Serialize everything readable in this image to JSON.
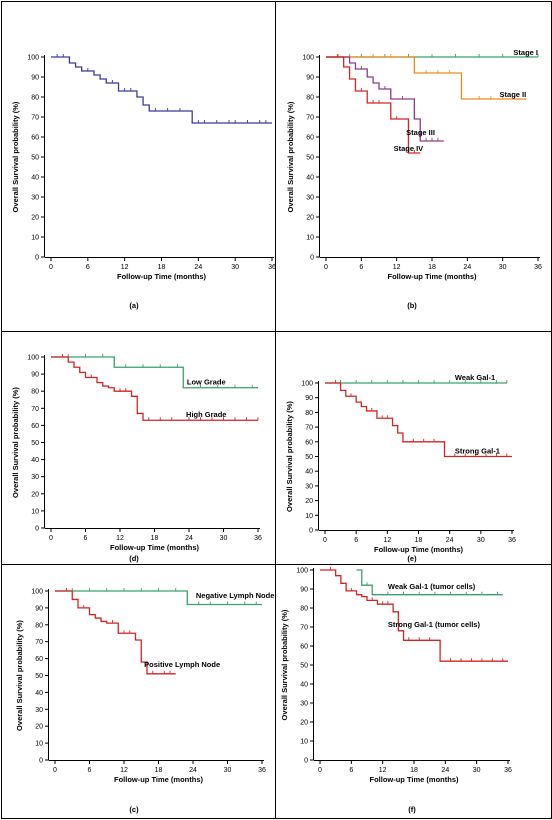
{
  "colors": {
    "blue": "#3a3a9a",
    "green": "#3aa06e",
    "orange": "#ef8a1a",
    "purple": "#8c3c8c",
    "red": "#d42424",
    "axis": "#000000",
    "frame": "#000000"
  },
  "chart_data": [
    {
      "panel": "(a)",
      "type": "line",
      "xlabel": "Follow-up Time (months)",
      "ylabel": "Overall Survival probability (%)",
      "xlim": [
        0,
        36
      ],
      "ylim": [
        0,
        100
      ],
      "xticks": [
        0,
        6,
        12,
        18,
        24,
        30,
        36
      ],
      "yticks": [
        0,
        10,
        20,
        30,
        40,
        50,
        60,
        70,
        80,
        90,
        100
      ],
      "series": [
        {
          "name": "",
          "color": "blue",
          "steps": [
            [
              0,
              100
            ],
            [
              3,
              97
            ],
            [
              4,
              95
            ],
            [
              5,
              93
            ],
            [
              7,
              91
            ],
            [
              8,
              89
            ],
            [
              9,
              87
            ],
            [
              11,
              83
            ],
            [
              14,
              80
            ],
            [
              15,
              76
            ],
            [
              16,
              73
            ],
            [
              23,
              67
            ],
            [
              36,
              67
            ]
          ],
          "censor": [
            1,
            2,
            5,
            6,
            8,
            10,
            12,
            13,
            17,
            19,
            21,
            24,
            25,
            27,
            29,
            30,
            32,
            34,
            35
          ]
        }
      ],
      "labels": []
    },
    {
      "panel": "(b)",
      "type": "line",
      "xlabel": "Follow-up Time (months)",
      "ylabel": "Overall Survival probability (%)",
      "xlim": [
        0,
        36
      ],
      "ylim": [
        0,
        100
      ],
      "xticks": [
        0,
        6,
        12,
        18,
        24,
        30,
        36
      ],
      "yticks": [
        0,
        10,
        20,
        30,
        40,
        50,
        60,
        70,
        80,
        90,
        100
      ],
      "series": [
        {
          "name": "Stage I",
          "color": "green",
          "steps": [
            [
              0,
              100
            ],
            [
              36,
              100
            ]
          ],
          "censor": [
            2,
            4,
            6,
            10,
            14,
            18,
            22,
            26,
            30,
            34,
            36
          ]
        },
        {
          "name": "Stage II",
          "color": "orange",
          "steps": [
            [
              0,
              100
            ],
            [
              15,
              92
            ],
            [
              23,
              79
            ],
            [
              34,
              79
            ]
          ],
          "censor": [
            2,
            4,
            8,
            11,
            17,
            19,
            21,
            26,
            28,
            30,
            32
          ]
        },
        {
          "name": "Stage III",
          "color": "purple",
          "steps": [
            [
              0,
              100
            ],
            [
              4,
              97
            ],
            [
              5,
              94
            ],
            [
              7,
              90
            ],
            [
              8,
              87
            ],
            [
              9,
              84
            ],
            [
              11,
              79
            ],
            [
              15,
              69
            ],
            [
              16,
              58
            ],
            [
              20,
              58
            ]
          ],
          "censor": [
            2,
            6,
            10,
            13,
            17,
            18,
            19
          ]
        },
        {
          "name": "Stage IV",
          "color": "red",
          "steps": [
            [
              0,
              100
            ],
            [
              3,
              95
            ],
            [
              4,
              89
            ],
            [
              5,
              83
            ],
            [
              7,
              77
            ],
            [
              11,
              69
            ],
            [
              14,
              52
            ],
            [
              16,
              52
            ]
          ],
          "censor": [
            2,
            6,
            8,
            9,
            12,
            15
          ]
        }
      ],
      "labels": [
        {
          "series": 0,
          "text": "Stage I",
          "x": 36,
          "y": 101
        },
        {
          "series": 1,
          "text": "Stage II",
          "x": 34,
          "y": 80
        },
        {
          "series": 2,
          "text": "Stage III",
          "x": 18.5,
          "y": 61
        },
        {
          "series": 3,
          "text": "Stage IV",
          "x": 16.5,
          "y": 53
        }
      ]
    },
    {
      "panel": "(d)",
      "type": "line",
      "xlabel": "Follow-up Time (months)",
      "ylabel": "Overall Survival probability (%)",
      "xlim": [
        0,
        36
      ],
      "ylim": [
        0,
        100
      ],
      "xticks": [
        0,
        6,
        12,
        18,
        24,
        30,
        36
      ],
      "yticks": [
        0,
        10,
        20,
        30,
        40,
        50,
        60,
        70,
        80,
        90,
        100
      ],
      "series": [
        {
          "name": "Low Grade",
          "color": "green",
          "steps": [
            [
              0,
              100
            ],
            [
              11,
              94
            ],
            [
              23,
              82
            ],
            [
              36,
              82
            ]
          ],
          "censor": [
            3,
            6,
            9,
            13,
            16,
            19,
            22,
            26,
            29,
            32,
            35
          ]
        },
        {
          "name": "High Grade",
          "color": "red",
          "steps": [
            [
              0,
              100
            ],
            [
              3,
              97
            ],
            [
              4,
              94
            ],
            [
              5,
              91
            ],
            [
              6,
              88
            ],
            [
              8,
              85
            ],
            [
              9,
              83
            ],
            [
              10,
              82
            ],
            [
              11,
              80
            ],
            [
              14,
              77
            ],
            [
              15,
              67
            ],
            [
              16,
              63
            ],
            [
              36,
              63
            ]
          ],
          "censor": [
            2,
            7,
            12,
            13,
            17,
            19,
            21,
            24,
            26,
            28,
            30,
            32,
            34,
            36
          ]
        }
      ],
      "labels": [
        {
          "series": 0,
          "text": "Low Grade",
          "x": 27,
          "y": 84
        },
        {
          "series": 1,
          "text": "High Grade",
          "x": 27,
          "y": 65
        }
      ]
    },
    {
      "panel": "(e)",
      "type": "line",
      "xlabel": "Follow-up Time (months)",
      "ylabel": "Overall Survival probability (%)",
      "xlim": [
        0,
        36
      ],
      "ylim": [
        0,
        100
      ],
      "xticks": [
        0,
        6,
        12,
        18,
        24,
        30,
        36
      ],
      "yticks": [
        0,
        10,
        20,
        30,
        40,
        50,
        60,
        70,
        80,
        90,
        100
      ],
      "series": [
        {
          "name": "Weak Gal-1",
          "color": "green",
          "steps": [
            [
              0,
              100
            ],
            [
              35,
              100
            ]
          ],
          "censor": [
            3,
            6,
            9,
            12,
            15,
            18,
            21,
            24,
            27,
            30,
            33,
            35
          ]
        },
        {
          "name": "Strong Gal-1",
          "color": "red",
          "steps": [
            [
              0,
              100
            ],
            [
              3,
              95
            ],
            [
              4,
              91
            ],
            [
              6,
              87
            ],
            [
              7,
              84
            ],
            [
              8,
              81
            ],
            [
              10,
              76
            ],
            [
              13,
              71
            ],
            [
              14,
              66
            ],
            [
              15,
              60
            ],
            [
              23,
              50
            ],
            [
              36,
              50
            ]
          ],
          "censor": [
            2,
            5,
            9,
            11,
            12,
            17,
            19,
            21,
            25,
            27,
            29,
            31,
            33,
            35
          ]
        }
      ],
      "labels": [
        {
          "series": 0,
          "text": "Weak Gal-1",
          "x": 25,
          "y": 102
        },
        {
          "series": 1,
          "text": "Strong Gal-1",
          "x": 25,
          "y": 52
        }
      ]
    },
    {
      "panel": "(c)",
      "type": "line",
      "xlabel": "Follow-up Time (months)",
      "ylabel": "Overall Survival probability (%)",
      "xlim": [
        0,
        36
      ],
      "ylim": [
        0,
        100
      ],
      "xticks": [
        0,
        6,
        12,
        18,
        24,
        30,
        36
      ],
      "yticks": [
        0,
        10,
        20,
        30,
        40,
        50,
        60,
        70,
        80,
        90,
        100
      ],
      "series": [
        {
          "name": "Negative Lymph Node",
          "color": "green",
          "steps": [
            [
              0,
              100
            ],
            [
              23,
              92
            ],
            [
              36,
              92
            ]
          ],
          "censor": [
            3,
            6,
            9,
            12,
            15,
            18,
            21,
            25,
            27,
            30,
            33,
            35
          ]
        },
        {
          "name": "Positive Lymph Node",
          "color": "red",
          "steps": [
            [
              0,
              100
            ],
            [
              3,
              95
            ],
            [
              4,
              90
            ],
            [
              6,
              86
            ],
            [
              7,
              84
            ],
            [
              8,
              82
            ],
            [
              9,
              81
            ],
            [
              11,
              75
            ],
            [
              14,
              71
            ],
            [
              15,
              58
            ],
            [
              16,
              51
            ],
            [
              21,
              51
            ]
          ],
          "censor": [
            2,
            5,
            10,
            12,
            13,
            17,
            19,
            20
          ]
        }
      ],
      "labels": [
        {
          "series": 0,
          "text": "Negative Lymph Node",
          "x": 24.5,
          "y": 96
        },
        {
          "series": 1,
          "text": "Positive Lymph Node",
          "x": 15.5,
          "y": 55
        }
      ]
    },
    {
      "panel": "(f)",
      "type": "line",
      "xlabel": "Follow-up Time (months)",
      "ylabel": "Overall Survival probability (%)",
      "xlim": [
        0,
        36
      ],
      "ylim": [
        0,
        100
      ],
      "xticks": [
        0,
        6,
        12,
        18,
        24,
        30,
        36
      ],
      "yticks": [
        0,
        10,
        20,
        30,
        40,
        50,
        60,
        70,
        80,
        90,
        100
      ],
      "series": [
        {
          "name": "Weak Gal-1 (tumor cells)",
          "color": "green",
          "steps": [
            [
              7,
              100
            ],
            [
              8,
              92
            ],
            [
              10,
              87
            ],
            [
              35,
              87
            ]
          ],
          "censor": [
            9,
            13,
            16,
            19,
            22,
            25,
            28,
            31,
            34
          ]
        },
        {
          "name": "Strong Gal-1 (tumor cells)",
          "color": "red",
          "steps": [
            [
              0,
              100
            ],
            [
              3,
              97
            ],
            [
              4,
              93
            ],
            [
              5,
              89
            ],
            [
              7,
              87
            ],
            [
              8,
              86
            ],
            [
              9,
              84
            ],
            [
              11,
              82
            ],
            [
              14,
              78
            ],
            [
              15,
              68
            ],
            [
              16,
              63
            ],
            [
              23,
              52
            ],
            [
              36,
              52
            ]
          ],
          "censor": [
            2,
            6,
            10,
            12,
            13,
            17,
            19,
            21,
            25,
            27,
            29,
            31,
            33,
            35
          ]
        }
      ],
      "labels": [
        {
          "series": 0,
          "text": "Weak Gal-1 (tumor cells)",
          "x": 13,
          "y": 90
        },
        {
          "series": 1,
          "text": "Strong Gal-1 (tumor cells)",
          "x": 13,
          "y": 70
        }
      ]
    }
  ]
}
